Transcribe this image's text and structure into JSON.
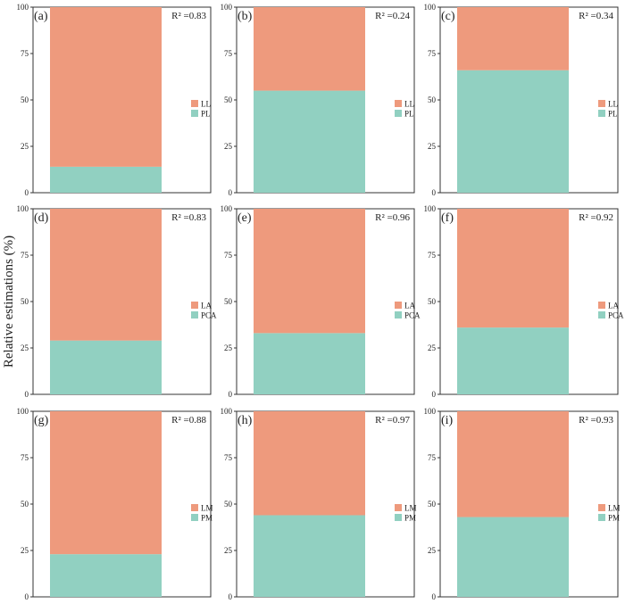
{
  "figure": {
    "ylabel": "Relative estimations (%)"
  },
  "colors": {
    "top": "#ee9a7d",
    "bottom": "#91d0c1",
    "axis": "#333333"
  },
  "chart_data": [
    {
      "type": "bar",
      "stacked": true,
      "label": "(a)",
      "r2": "R² =0.83",
      "ylim": [
        0,
        100
      ],
      "yticks": [
        "0",
        "25",
        "50",
        "75",
        "100"
      ],
      "series": [
        {
          "name": "PL",
          "values": [
            14
          ]
        },
        {
          "name": "LL",
          "values": [
            86
          ]
        }
      ],
      "legend": [
        "LL",
        "PL"
      ]
    },
    {
      "type": "bar",
      "stacked": true,
      "label": "(b)",
      "r2": "R² =0.24",
      "ylim": [
        0,
        100
      ],
      "yticks": [
        "0",
        "25",
        "50",
        "75",
        "100"
      ],
      "series": [
        {
          "name": "PL",
          "values": [
            55
          ]
        },
        {
          "name": "LL",
          "values": [
            45
          ]
        }
      ],
      "legend": [
        "LL",
        "PL"
      ]
    },
    {
      "type": "bar",
      "stacked": true,
      "label": "(c)",
      "r2": "R² =0.34",
      "ylim": [
        0,
        100
      ],
      "yticks": [
        "0",
        "25",
        "50",
        "75",
        "100"
      ],
      "series": [
        {
          "name": "PL",
          "values": [
            66
          ]
        },
        {
          "name": "LL",
          "values": [
            34
          ]
        }
      ],
      "legend": [
        "LL",
        "PL"
      ]
    },
    {
      "type": "bar",
      "stacked": true,
      "label": "(d)",
      "r2": "R² =0.83",
      "ylim": [
        0,
        100
      ],
      "yticks": [
        "0",
        "25",
        "50",
        "75",
        "100"
      ],
      "series": [
        {
          "name": "PCA",
          "values": [
            29
          ]
        },
        {
          "name": "LA",
          "values": [
            71
          ]
        }
      ],
      "legend": [
        "LA",
        "PCA"
      ]
    },
    {
      "type": "bar",
      "stacked": true,
      "label": "(e)",
      "r2": "R² =0.96",
      "ylim": [
        0,
        100
      ],
      "yticks": [
        "0",
        "25",
        "50",
        "75",
        "100"
      ],
      "series": [
        {
          "name": "PCA",
          "values": [
            33
          ]
        },
        {
          "name": "LA",
          "values": [
            67
          ]
        }
      ],
      "legend": [
        "LA",
        "PCA"
      ]
    },
    {
      "type": "bar",
      "stacked": true,
      "label": "(f)",
      "r2": "R² =0.92",
      "ylim": [
        0,
        100
      ],
      "yticks": [
        "0",
        "25",
        "50",
        "75",
        "100"
      ],
      "series": [
        {
          "name": "PCA",
          "values": [
            36
          ]
        },
        {
          "name": "LA",
          "values": [
            64
          ]
        }
      ],
      "legend": [
        "LA",
        "PCA"
      ]
    },
    {
      "type": "bar",
      "stacked": true,
      "label": "(g)",
      "r2": "R² =0.88",
      "ylim": [
        0,
        100
      ],
      "yticks": [
        "0",
        "25",
        "50",
        "75",
        "100"
      ],
      "series": [
        {
          "name": "PM",
          "values": [
            23
          ]
        },
        {
          "name": "LM",
          "values": [
            77
          ]
        }
      ],
      "legend": [
        "LM",
        "PM"
      ]
    },
    {
      "type": "bar",
      "stacked": true,
      "label": "(h)",
      "r2": "R² =0.97",
      "ylim": [
        0,
        100
      ],
      "yticks": [
        "0",
        "25",
        "50",
        "75",
        "100"
      ],
      "series": [
        {
          "name": "PM",
          "values": [
            44
          ]
        },
        {
          "name": "LM",
          "values": [
            56
          ]
        }
      ],
      "legend": [
        "LM",
        "PM"
      ]
    },
    {
      "type": "bar",
      "stacked": true,
      "label": "(i)",
      "r2": "R² =0.93",
      "ylim": [
        0,
        100
      ],
      "yticks": [
        "0",
        "25",
        "50",
        "75",
        "100"
      ],
      "series": [
        {
          "name": "PM",
          "values": [
            43
          ]
        },
        {
          "name": "LM",
          "values": [
            57
          ]
        }
      ],
      "legend": [
        "LM",
        "PM"
      ]
    }
  ]
}
